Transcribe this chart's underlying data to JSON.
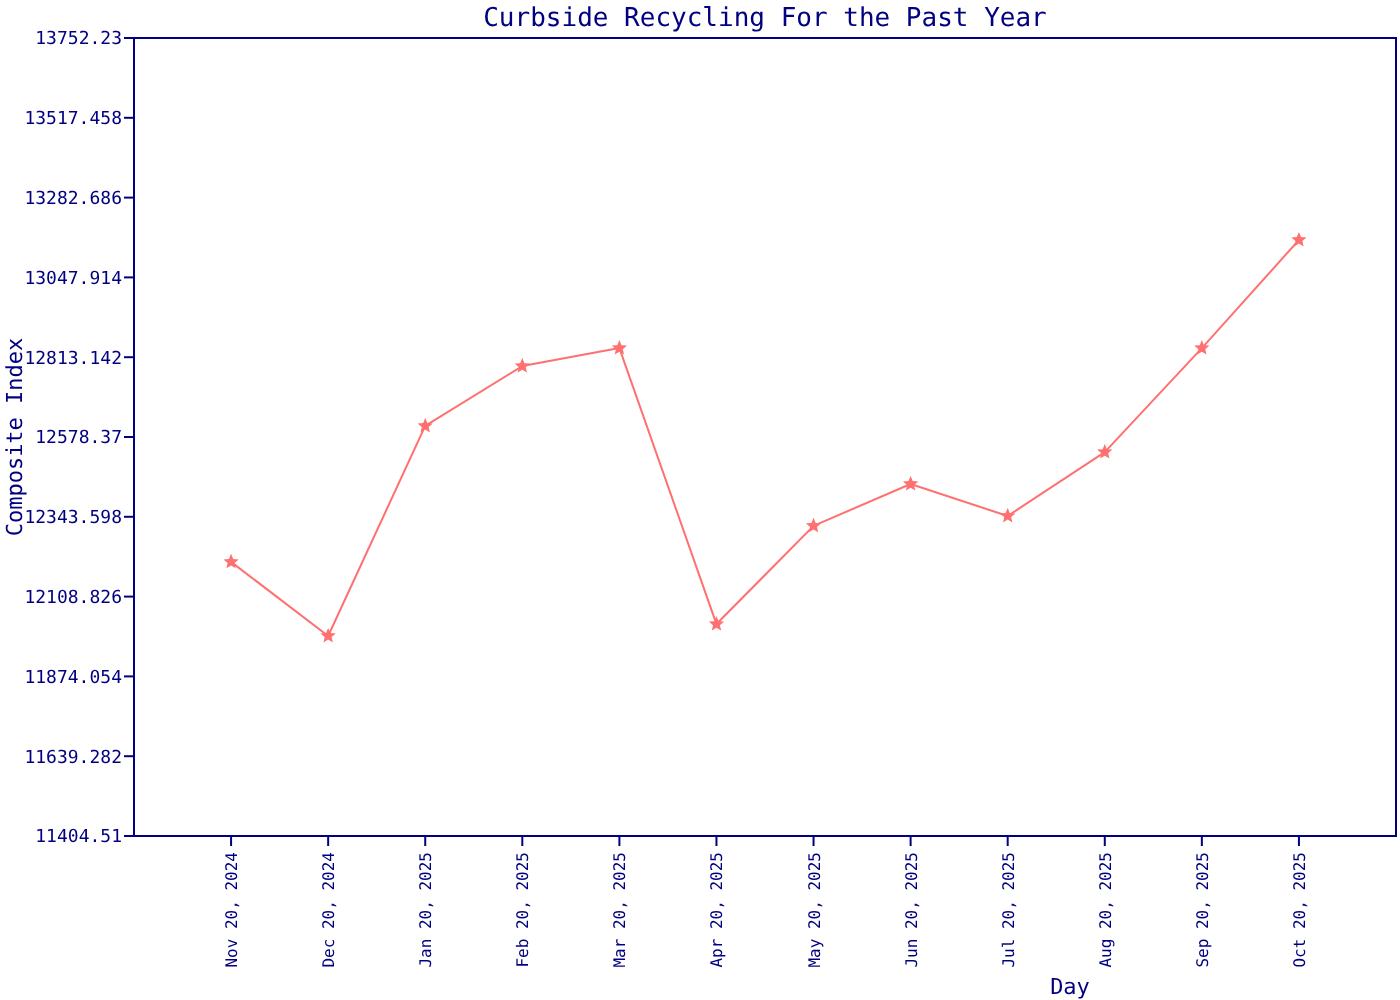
{
  "chart_data": {
    "type": "line",
    "title": "Curbside Recycling For the Past Year",
    "xlabel": "Day",
    "ylabel": "Composite Index",
    "categories": [
      "Nov 20, 2024",
      "Dec 20, 2024",
      "Jan 20, 2025",
      "Feb 20, 2025",
      "Mar 20, 2025",
      "Apr 20, 2025",
      "May 20, 2025",
      "Jun 20, 2025",
      "Jul 20, 2025",
      "Aug 20, 2025",
      "Sep 20, 2025",
      "Oct 20, 2025"
    ],
    "series": [
      {
        "color": "#ff7070",
        "values": [
          12211,
          11993,
          12611,
          12787,
          12840,
          12028,
          12317,
          12440,
          12346,
          12534,
          12840,
          13158
        ]
      }
    ],
    "ylim": [
      11404.51,
      13752.23
    ],
    "yticks": [
      11404.51,
      11639.282,
      11874.054,
      12108.826,
      12343.598,
      12578.37,
      12813.142,
      13047.914,
      13282.686,
      13517.458,
      13752.23
    ],
    "grid": false,
    "marker": "star",
    "line_style": "solid"
  }
}
